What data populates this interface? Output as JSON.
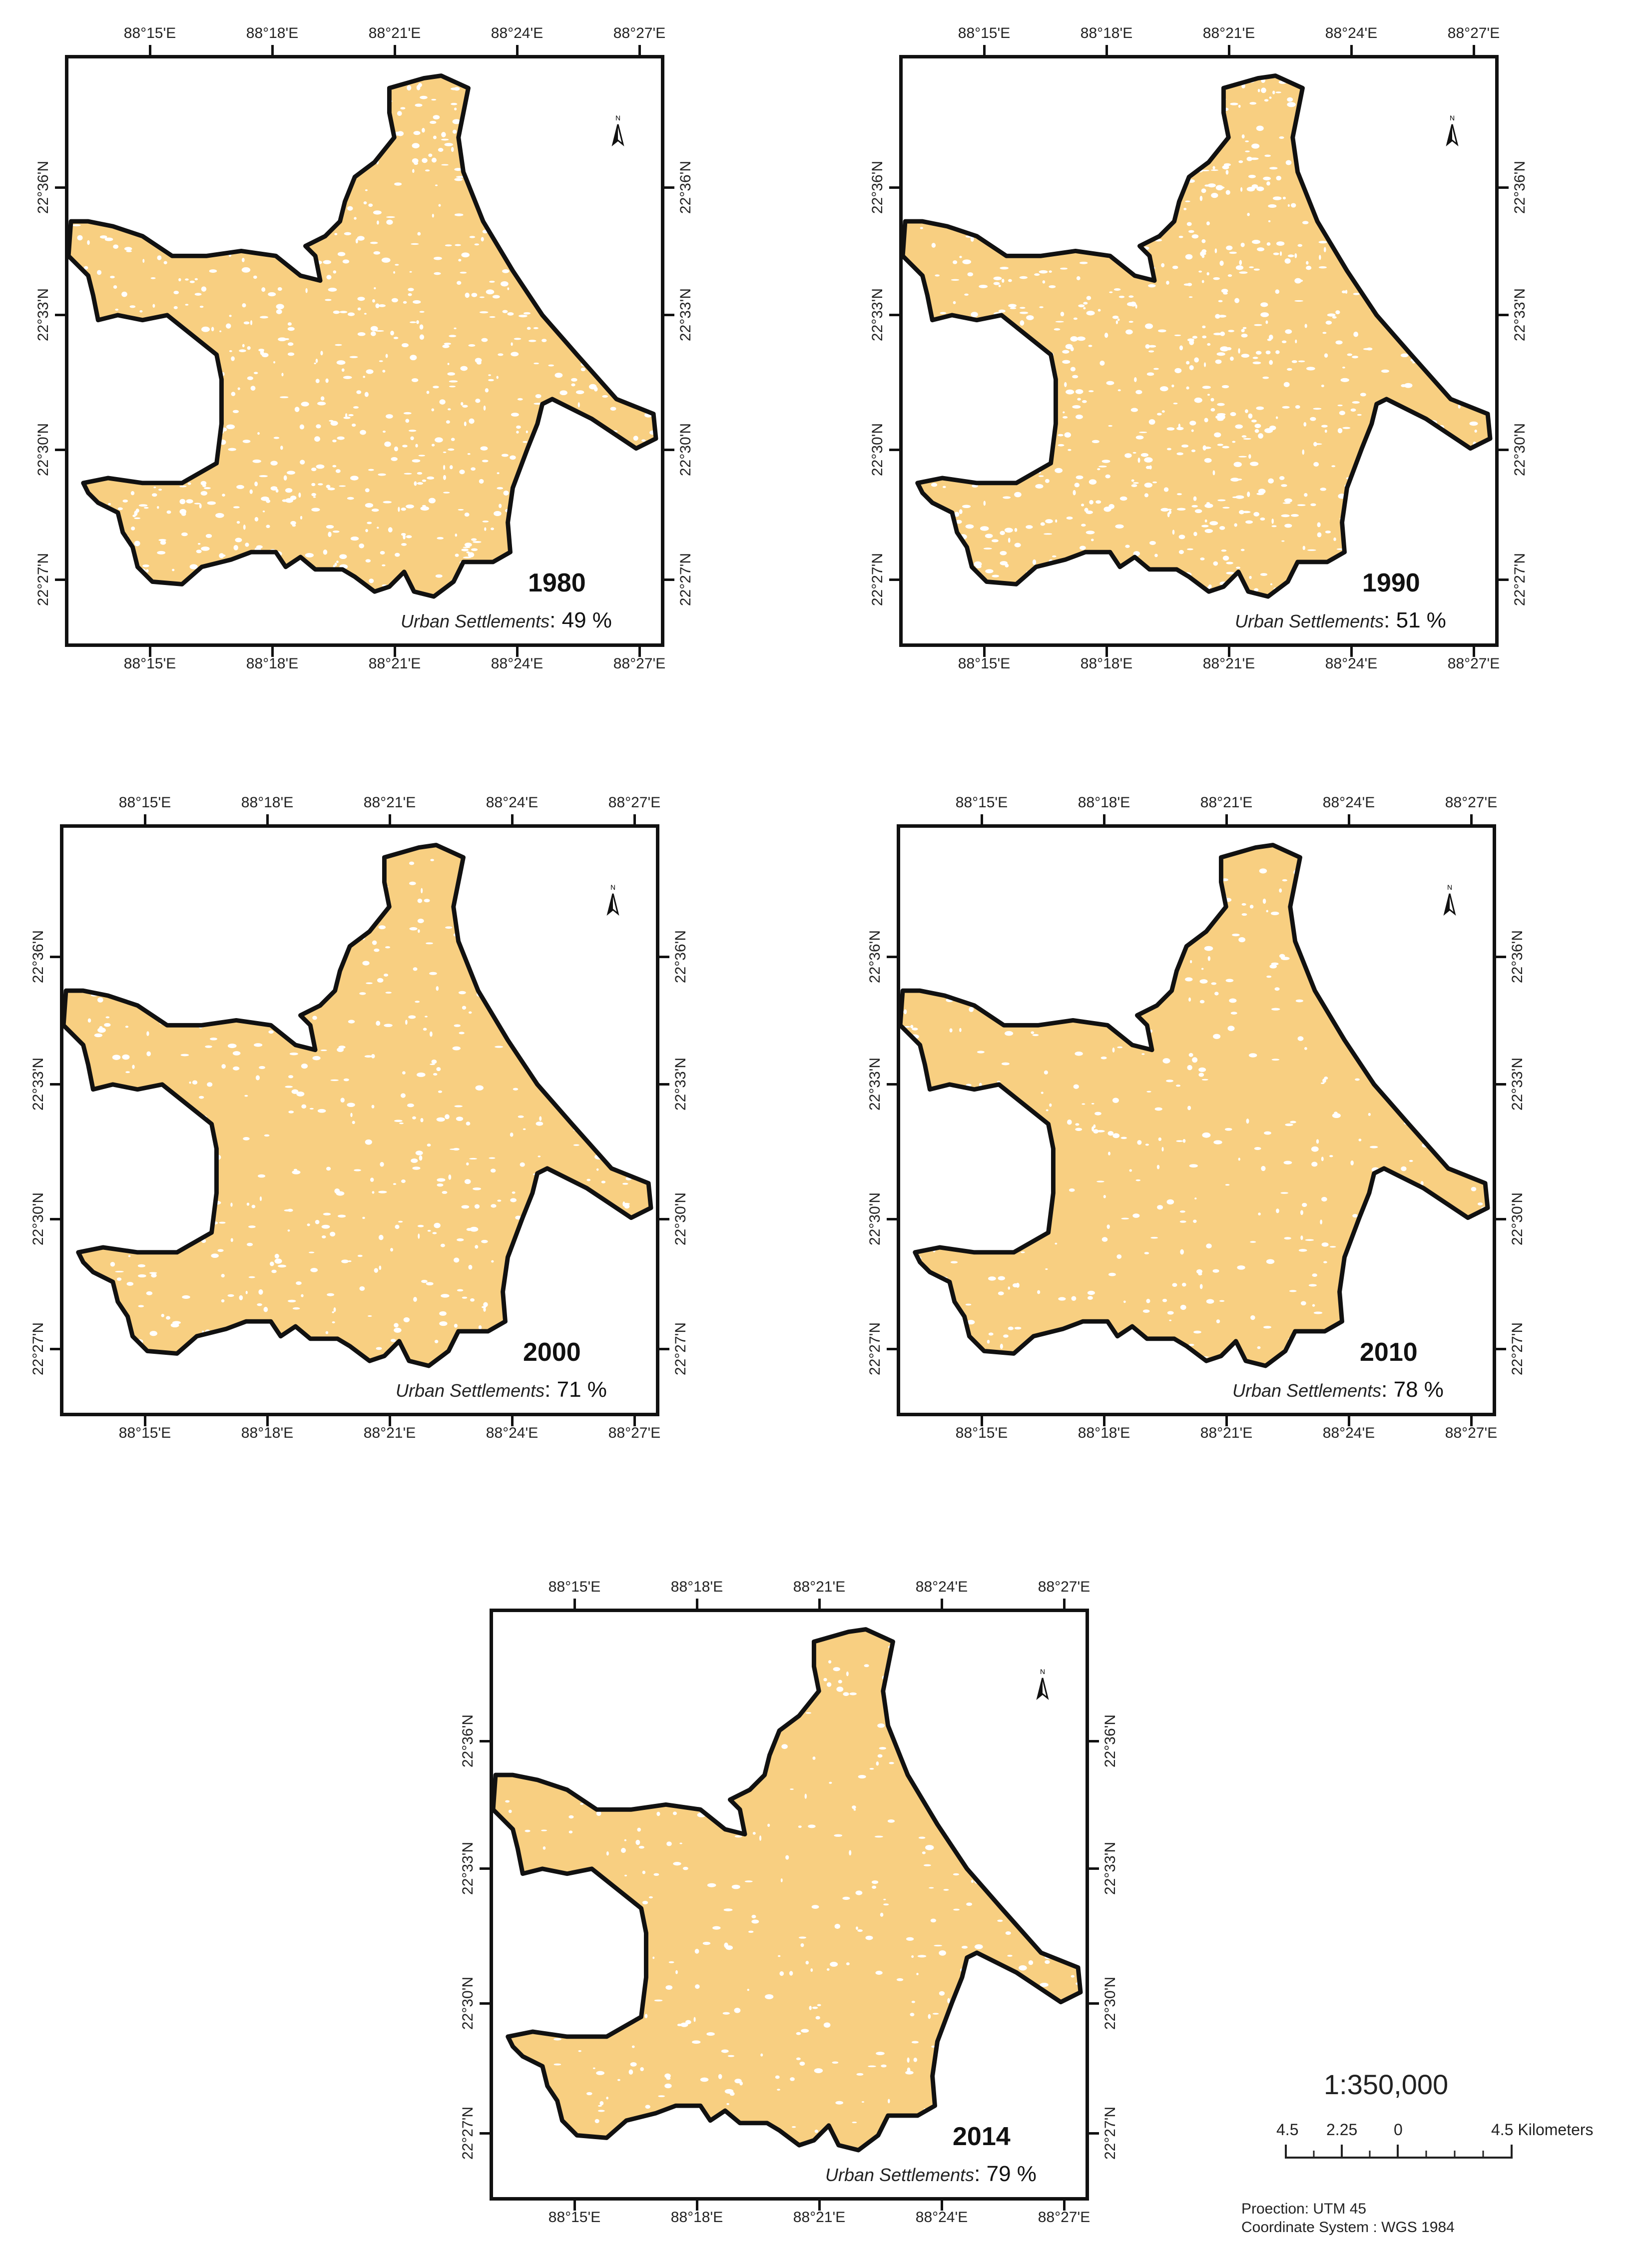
{
  "colors": {
    "urban_fill": "#F8CF81",
    "boundary": "#111111",
    "non_urban": "#ffffff"
  },
  "ticks": {
    "lon": [
      "88°15'E",
      "88°18'E",
      "88°21'E",
      "88°24'E",
      "88°27'E"
    ],
    "lat": [
      "22°36'N",
      "22°33'N",
      "22°30'N",
      "22°27'N"
    ]
  },
  "urban_label": "Urban Settlements",
  "percent_suffix": "%",
  "panels": [
    {
      "year": "1980",
      "urban_pct": "49",
      "urban_fraction": 0.49
    },
    {
      "year": "1990",
      "urban_pct": "51",
      "urban_fraction": 0.51
    },
    {
      "year": "2000",
      "urban_pct": "71",
      "urban_fraction": 0.71
    },
    {
      "year": "2010",
      "urban_pct": "78",
      "urban_fraction": 0.78
    },
    {
      "year": "2014",
      "urban_pct": "79",
      "urban_fraction": 0.79
    }
  ],
  "north_arrow": {
    "icon": "north-arrow-icon",
    "letter": "N"
  },
  "legend": {
    "scale_ratio": "1:350,000",
    "scale_labels": [
      "4.5",
      "2.25",
      "0",
      "4.5 Kilometers"
    ],
    "projection": "Proection: UTM 45",
    "coordinate_system": "Coordinate System : WGS 1984"
  }
}
